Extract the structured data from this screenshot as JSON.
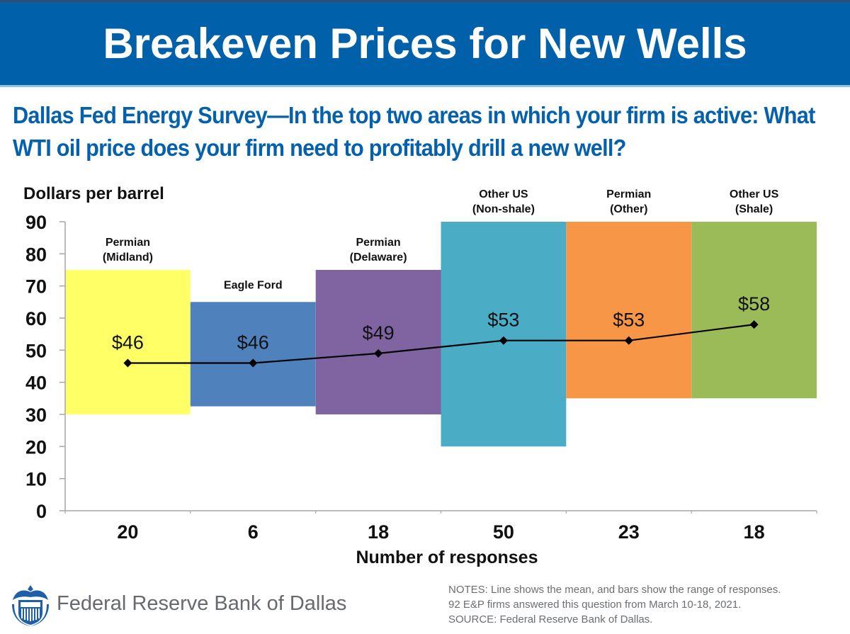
{
  "banner": {
    "title": "Breakeven Prices for New Wells"
  },
  "subtitle": {
    "line1": "Dallas Fed Energy Survey—In the top two areas in which your firm is active: What",
    "line2": "WTI oil price does your firm need to profitably drill a new well?"
  },
  "chart_data": {
    "type": "bar",
    "subtype": "floating-range-bars-with-mean-line",
    "title": "Breakeven Prices for New Wells",
    "ylabel": "Dollars per barrel",
    "xlabel": "Number of responses",
    "ylim": [
      0,
      90
    ],
    "yticks": [
      0,
      10,
      20,
      30,
      40,
      50,
      60,
      70,
      80,
      90
    ],
    "grid": false,
    "categories": [
      {
        "name_line1": "Permian",
        "name_line2": "(Midland)",
        "responses": "20",
        "low": 30,
        "high": 75,
        "mean": 46,
        "mean_label": "$46",
        "color": "#ffff66"
      },
      {
        "name_line1": "Eagle Ford",
        "name_line2": "",
        "responses": "6",
        "low": 32.5,
        "high": 65,
        "mean": 46,
        "mean_label": "$46",
        "color": "#4f81bd"
      },
      {
        "name_line1": "Permian",
        "name_line2": "(Delaware)",
        "responses": "18",
        "low": 30,
        "high": 75,
        "mean": 49,
        "mean_label": "$49",
        "color": "#8064a2"
      },
      {
        "name_line1": "Other US",
        "name_line2": "(Non-shale)",
        "responses": "50",
        "low": 20,
        "high": 90,
        "mean": 53,
        "mean_label": "$53",
        "color": "#4bacc6"
      },
      {
        "name_line1": "Permian",
        "name_line2": "(Other)",
        "responses": "23",
        "low": 35,
        "high": 90,
        "mean": 53,
        "mean_label": "$53",
        "color": "#f79646"
      },
      {
        "name_line1": "Other US",
        "name_line2": "(Shale)",
        "responses": "18",
        "low": 35,
        "high": 90,
        "mean": 58,
        "mean_label": "$58",
        "color": "#9bbb59"
      }
    ],
    "series": [
      {
        "name": "Range of responses (low)",
        "values": [
          30,
          32.5,
          30,
          20,
          35,
          35
        ]
      },
      {
        "name": "Range of responses (high)",
        "values": [
          75,
          65,
          75,
          90,
          90,
          90
        ]
      },
      {
        "name": "Mean",
        "values": [
          46,
          46,
          49,
          53,
          53,
          58
        ]
      }
    ],
    "x_tick_labels": [
      "20",
      "6",
      "18",
      "50",
      "23",
      "18"
    ],
    "line_color": "#000000",
    "axis_color": "#a6a6a6"
  },
  "footer": {
    "logo_icon": "federal-reserve-eagle-seal-icon",
    "logo_color": "#1f5fa8",
    "org_name": "Federal Reserve Bank of Dallas",
    "notes": [
      "NOTES: Line shows the mean, and bars show the range of responses.",
      "92 E&P firms answered this question from March 10-18, 2021.",
      "SOURCE: Federal Reserve Bank of Dallas."
    ]
  }
}
